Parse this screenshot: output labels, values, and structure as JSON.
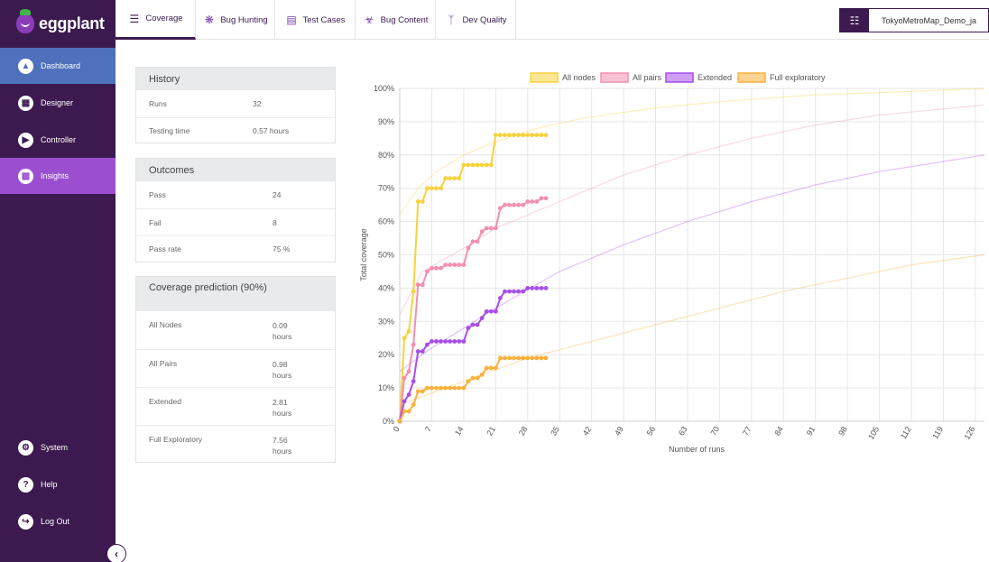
{
  "app": {
    "logo_text": "eggplant"
  },
  "sidebar": {
    "items": [
      {
        "label": "Dashboard",
        "icon": "dashboard-icon"
      },
      {
        "label": "Designer",
        "icon": "designer-icon"
      },
      {
        "label": "Controller",
        "icon": "controller-icon"
      },
      {
        "label": "Insights",
        "icon": "insights-icon"
      }
    ],
    "bottom": [
      {
        "label": "System",
        "icon": "gear-icon"
      },
      {
        "label": "Help",
        "icon": "help-icon"
      },
      {
        "label": "Log Out",
        "icon": "logout-icon"
      }
    ]
  },
  "tabs": [
    {
      "label": "Coverage",
      "icon": "layers-icon",
      "active": true
    },
    {
      "label": "Bug Hunting",
      "icon": "bug-icon"
    },
    {
      "label": "Test Cases",
      "icon": "list-icon"
    },
    {
      "label": "Bug Content",
      "icon": "biohazard-icon"
    },
    {
      "label": "Dev Quality",
      "icon": "branch-icon"
    }
  ],
  "project": {
    "name": "TokyoMetroMap_Demo_ja",
    "icon": "sitemap-icon"
  },
  "history": {
    "title": "History",
    "rows": [
      {
        "key": "Runs",
        "value": "32"
      },
      {
        "key": "Testing time",
        "value": "0.57 hours"
      }
    ]
  },
  "outcomes": {
    "title": "Outcomes",
    "rows": [
      {
        "key": "Pass",
        "value": "24"
      },
      {
        "key": "Fail",
        "value": "8"
      },
      {
        "key": "Pass rate",
        "value": "75 %"
      }
    ]
  },
  "prediction": {
    "title": "Coverage prediction (90%)",
    "rows": [
      {
        "key": "All Nodes",
        "value": "0.09 hours"
      },
      {
        "key": "All Pairs",
        "value": "0.98 hours"
      },
      {
        "key": "Extended",
        "value": "2.81 hours"
      },
      {
        "key": "Full Exploratory",
        "value": "7.56 hours"
      }
    ]
  },
  "chart_data": {
    "type": "line",
    "xlabel": "Number of runs",
    "ylabel": "Total coverage",
    "xlim": [
      0,
      128
    ],
    "ylim": [
      0,
      100
    ],
    "x_ticks": [
      0,
      7,
      14,
      21,
      28,
      35,
      42,
      49,
      56,
      63,
      70,
      77,
      84,
      91,
      98,
      105,
      112,
      119,
      126
    ],
    "y_ticks": [
      "0%",
      "10%",
      "20%",
      "30%",
      "40%",
      "50%",
      "60%",
      "70%",
      "80%",
      "90%",
      "100%"
    ],
    "legend_position": "top",
    "grid": true,
    "series": [
      {
        "name": "All nodes",
        "color": "#f7d23e",
        "x": [
          0,
          1,
          2,
          3,
          4,
          5,
          6,
          7,
          8,
          9,
          10,
          11,
          12,
          13,
          14,
          15,
          16,
          17,
          18,
          19,
          20,
          21,
          22,
          23,
          24,
          25,
          26,
          27,
          28,
          29,
          30,
          31,
          32
        ],
        "values": [
          0,
          25,
          27,
          39,
          66,
          66,
          70,
          70,
          70,
          70,
          73,
          73,
          73,
          73,
          77,
          77,
          77,
          77,
          77,
          77,
          77,
          86,
          86,
          86,
          86,
          86,
          86,
          86,
          86,
          86,
          86,
          86,
          86
        ],
        "prediction": [
          [
            0,
            62
          ],
          [
            4,
            70
          ],
          [
            8,
            75
          ],
          [
            14,
            80
          ],
          [
            21,
            84
          ],
          [
            30,
            88
          ],
          [
            40,
            91
          ],
          [
            55,
            94
          ],
          [
            70,
            96
          ],
          [
            90,
            98
          ],
          [
            110,
            99
          ],
          [
            128,
            100
          ]
        ]
      },
      {
        "name": "All pairs",
        "color": "#f48fb1",
        "x": [
          0,
          1,
          2,
          3,
          4,
          5,
          6,
          7,
          8,
          9,
          10,
          11,
          12,
          13,
          14,
          15,
          16,
          17,
          18,
          19,
          20,
          21,
          22,
          23,
          24,
          25,
          26,
          27,
          28,
          29,
          30,
          31,
          32
        ],
        "values": [
          0,
          13,
          15,
          23,
          41,
          41,
          45,
          46,
          46,
          46,
          47,
          47,
          47,
          47,
          47,
          52,
          54,
          54,
          57,
          58,
          58,
          58,
          64,
          65,
          65,
          65,
          65,
          65,
          66,
          66,
          66,
          67,
          67
        ],
        "prediction": [
          [
            0,
            32
          ],
          [
            5,
            45
          ],
          [
            14,
            52
          ],
          [
            21,
            58
          ],
          [
            35,
            66
          ],
          [
            49,
            74
          ],
          [
            63,
            80
          ],
          [
            77,
            85
          ],
          [
            91,
            89
          ],
          [
            105,
            92
          ],
          [
            128,
            95
          ]
        ]
      },
      {
        "name": "Extended",
        "color": "#a84ee8",
        "x": [
          0,
          1,
          2,
          3,
          4,
          5,
          6,
          7,
          8,
          9,
          10,
          11,
          12,
          13,
          14,
          15,
          16,
          17,
          18,
          19,
          20,
          21,
          22,
          23,
          24,
          25,
          26,
          27,
          28,
          29,
          30,
          31,
          32
        ],
        "values": [
          0,
          6,
          8,
          12,
          21,
          21,
          23,
          24,
          24,
          24,
          24,
          24,
          24,
          24,
          24,
          28,
          29,
          29,
          31,
          33,
          33,
          33,
          37,
          39,
          39,
          39,
          39,
          39,
          40,
          40,
          40,
          40,
          40
        ],
        "prediction": [
          [
            0,
            15
          ],
          [
            7,
            22
          ],
          [
            14,
            28
          ],
          [
            21,
            34
          ],
          [
            35,
            45
          ],
          [
            49,
            53
          ],
          [
            63,
            60
          ],
          [
            77,
            66
          ],
          [
            91,
            71
          ],
          [
            105,
            75
          ],
          [
            128,
            80
          ]
        ]
      },
      {
        "name": "Full exploratory",
        "color": "#fbb03b",
        "x": [
          0,
          1,
          2,
          3,
          4,
          5,
          6,
          7,
          8,
          9,
          10,
          11,
          12,
          13,
          14,
          15,
          16,
          17,
          18,
          19,
          20,
          21,
          22,
          23,
          24,
          25,
          26,
          27,
          28,
          29,
          30,
          31,
          32
        ],
        "values": [
          0,
          3,
          3,
          5,
          9,
          9,
          10,
          10,
          10,
          10,
          10,
          10,
          10,
          10,
          10,
          12,
          13,
          13,
          14,
          16,
          16,
          16,
          19,
          19,
          19,
          19,
          19,
          19,
          19,
          19,
          19,
          19,
          19
        ],
        "prediction": [
          [
            0,
            5
          ],
          [
            14,
            12
          ],
          [
            28,
            19
          ],
          [
            42,
            24
          ],
          [
            56,
            29
          ],
          [
            70,
            34
          ],
          [
            84,
            39
          ],
          [
            98,
            43
          ],
          [
            112,
            47
          ],
          [
            128,
            50
          ]
        ]
      }
    ]
  }
}
